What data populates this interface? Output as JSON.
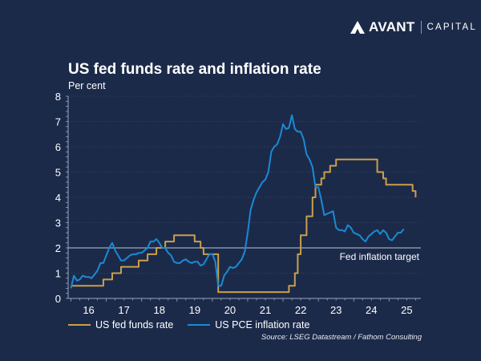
{
  "brand": {
    "name": "AVANT",
    "division": "CAPITAL"
  },
  "header": {
    "title": "US fed funds rate and inflation rate",
    "subtitle": "Per cent"
  },
  "source": "Source: LSEG Datastream / Fathom Consulting",
  "colors": {
    "background": "#1c2a4a",
    "fed": "#c9a04a",
    "pce": "#1a8ad4",
    "target": "#9aa6bf",
    "grid": "#3a4a6a",
    "axis": "#9aa6bf"
  },
  "chart_data": {
    "type": "line",
    "title": "US fed funds rate and inflation rate",
    "ylabel": "Per cent",
    "xlabel": "",
    "ylim": [
      0,
      8
    ],
    "yticks": [
      0,
      1,
      2,
      3,
      4,
      5,
      6,
      7,
      8
    ],
    "xlim": [
      2015.92,
      2025.9
    ],
    "xticks": [
      {
        "label": "16",
        "value": 2016.5
      },
      {
        "label": "17",
        "value": 2017.5
      },
      {
        "label": "18",
        "value": 2018.5
      },
      {
        "label": "19",
        "value": 2019.5
      },
      {
        "label": "20",
        "value": 2020.5
      },
      {
        "label": "21",
        "value": 2021.5
      },
      {
        "label": "22",
        "value": 2022.5
      },
      {
        "label": "23",
        "value": 2023.5
      },
      {
        "label": "24",
        "value": 2024.5
      },
      {
        "label": "25",
        "value": 2025.5
      }
    ],
    "grid": true,
    "legend_position": "bottom-left",
    "reference_line": {
      "label": "Fed inflation target",
      "value": 2
    },
    "series": [
      {
        "name": "US fed funds rate",
        "color": "#c9a04a",
        "start": 2016.0,
        "step_months": 1,
        "values": [
          0.5,
          0.5,
          0.5,
          0.5,
          0.5,
          0.5,
          0.5,
          0.5,
          0.5,
          0.5,
          0.5,
          0.75,
          0.75,
          0.75,
          1.0,
          1.0,
          1.0,
          1.25,
          1.25,
          1.25,
          1.25,
          1.25,
          1.25,
          1.5,
          1.5,
          1.5,
          1.75,
          1.75,
          1.75,
          2.0,
          2.0,
          2.0,
          2.25,
          2.25,
          2.25,
          2.5,
          2.5,
          2.5,
          2.5,
          2.5,
          2.5,
          2.5,
          2.25,
          2.25,
          2.0,
          1.75,
          1.75,
          1.75,
          1.75,
          1.75,
          0.25,
          0.25,
          0.25,
          0.25,
          0.25,
          0.25,
          0.25,
          0.25,
          0.25,
          0.25,
          0.25,
          0.25,
          0.25,
          0.25,
          0.25,
          0.25,
          0.25,
          0.25,
          0.25,
          0.25,
          0.25,
          0.25,
          0.25,
          0.25,
          0.5,
          0.5,
          1.0,
          1.75,
          2.5,
          2.5,
          3.25,
          3.25,
          4.0,
          4.5,
          4.5,
          4.75,
          5.0,
          5.0,
          5.25,
          5.25,
          5.5,
          5.5,
          5.5,
          5.5,
          5.5,
          5.5,
          5.5,
          5.5,
          5.5,
          5.5,
          5.5,
          5.5,
          5.5,
          5.5,
          5.0,
          5.0,
          4.75,
          4.5,
          4.5,
          4.5,
          4.5,
          4.5,
          4.5,
          4.5,
          4.5,
          4.5,
          4.25,
          4.0
        ]
      },
      {
        "name": "US PCE inflation rate",
        "color": "#1a8ad4",
        "start": 2016.0,
        "step_months": 1,
        "values": [
          0.4,
          0.9,
          0.7,
          0.75,
          0.9,
          0.85,
          0.85,
          0.8,
          0.95,
          1.1,
          1.4,
          1.4,
          1.7,
          2.0,
          2.2,
          1.9,
          1.7,
          1.5,
          1.5,
          1.6,
          1.7,
          1.75,
          1.75,
          1.8,
          1.8,
          1.9,
          2.0,
          2.25,
          2.25,
          2.35,
          2.2,
          2.0,
          2.0,
          1.8,
          1.7,
          1.45,
          1.4,
          1.4,
          1.5,
          1.55,
          1.45,
          1.4,
          1.45,
          1.45,
          1.3,
          1.35,
          1.55,
          1.75,
          1.75,
          1.45,
          0.5,
          0.5,
          0.9,
          1.05,
          1.25,
          1.2,
          1.25,
          1.4,
          1.55,
          1.85,
          2.6,
          3.5,
          3.9,
          4.2,
          4.4,
          4.6,
          4.7,
          5.0,
          5.8,
          6.0,
          6.1,
          6.4,
          6.9,
          6.7,
          6.75,
          7.25,
          6.7,
          6.6,
          6.6,
          6.3,
          5.7,
          5.5,
          5.2,
          4.4,
          4.4,
          3.9,
          3.3,
          3.35,
          3.4,
          3.45,
          2.8,
          2.7,
          2.7,
          2.65,
          2.9,
          2.8,
          2.6,
          2.55,
          2.5,
          2.35,
          2.25,
          2.45,
          2.55,
          2.65,
          2.7,
          2.55,
          2.7,
          2.6,
          2.35,
          2.3,
          2.45,
          2.6,
          2.6,
          2.75
        ]
      }
    ]
  }
}
